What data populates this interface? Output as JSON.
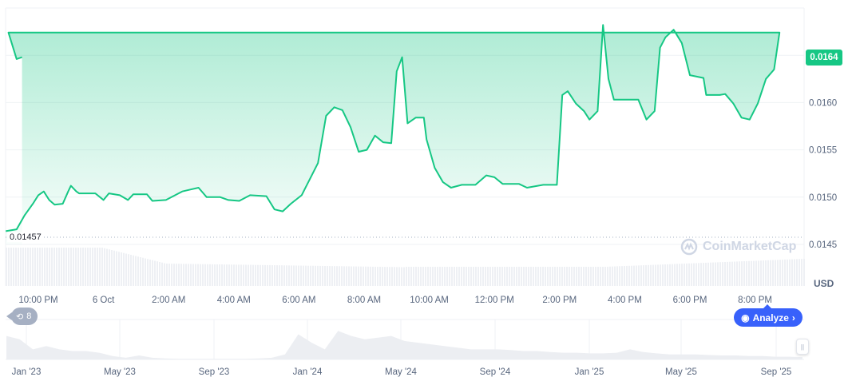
{
  "chart_data": {
    "type": "area",
    "currency": "USD",
    "current_price": "0.0164",
    "min_marker": "0.01457",
    "y_ticks": [
      "0.0160",
      "0.0155",
      "0.0150",
      "0.0145"
    ],
    "y_tick_values": [
      0.016,
      0.0155,
      0.015,
      0.0145
    ],
    "ylim": [
      0.0145,
      0.0165
    ],
    "x_ticks": [
      "10:00 PM",
      "6 Oct",
      "2:00 AM",
      "4:00 AM",
      "6:00 AM",
      "8:00 AM",
      "10:00 AM",
      "12:00 PM",
      "2:00 PM",
      "4:00 PM",
      "6:00 PM",
      "8:00 PM"
    ],
    "x_tick_times": [
      "22:00",
      "00:00",
      "02:00",
      "04:00",
      "06:00",
      "08:00",
      "10:00",
      "12:00",
      "14:00",
      "16:00",
      "18:00",
      "20:00"
    ],
    "line_color": "#16c784",
    "points": [
      [
        "21:00",
        0.01464
      ],
      [
        "21:20",
        0.01466
      ],
      [
        "21:35",
        0.01481
      ],
      [
        "21:50",
        0.01493
      ],
      [
        "22:00",
        0.01502
      ],
      [
        "22:10",
        0.01506
      ],
      [
        "22:20",
        0.01497
      ],
      [
        "22:30",
        0.01492
      ],
      [
        "22:45",
        0.01493
      ],
      [
        "22:55",
        0.01506
      ],
      [
        "23:00",
        0.01512
      ],
      [
        "23:10",
        0.01506
      ],
      [
        "23:15",
        0.01504
      ],
      [
        "23:45",
        0.01504
      ],
      [
        "00:00",
        0.01497
      ],
      [
        "00:10",
        0.01504
      ],
      [
        "00:30",
        0.01502
      ],
      [
        "00:45",
        0.01497
      ],
      [
        "00:55",
        0.01503
      ],
      [
        "01:20",
        0.01503
      ],
      [
        "01:30",
        0.01496
      ],
      [
        "01:55",
        0.01497
      ],
      [
        "02:25",
        0.01506
      ],
      [
        "02:40",
        0.01508
      ],
      [
        "02:55",
        0.0151
      ],
      [
        "03:10",
        0.015
      ],
      [
        "03:35",
        0.015
      ],
      [
        "03:50",
        0.01497
      ],
      [
        "04:10",
        0.01496
      ],
      [
        "04:30",
        0.01502
      ],
      [
        "05:00",
        0.01501
      ],
      [
        "05:15",
        0.01487
      ],
      [
        "05:30",
        0.01485
      ],
      [
        "05:45",
        0.01493
      ],
      [
        "06:05",
        0.01502
      ],
      [
        "06:20",
        0.01519
      ],
      [
        "06:35",
        0.01536
      ],
      [
        "06:50",
        0.01586
      ],
      [
        "07:05",
        0.01595
      ],
      [
        "07:20",
        0.01592
      ],
      [
        "07:35",
        0.01574
      ],
      [
        "07:50",
        0.01548
      ],
      [
        "08:05",
        0.0155
      ],
      [
        "08:20",
        0.01565
      ],
      [
        "08:35",
        0.01558
      ],
      [
        "08:50",
        0.01557
      ],
      [
        "09:00",
        0.01633
      ],
      [
        "09:10",
        0.01648
      ],
      [
        "09:20",
        0.01578
      ],
      [
        "09:35",
        0.01584
      ],
      [
        "09:50",
        0.01584
      ],
      [
        "09:55",
        0.01561
      ],
      [
        "10:10",
        0.01531
      ],
      [
        "10:25",
        0.01516
      ],
      [
        "10:40",
        0.0151
      ],
      [
        "11:00",
        0.01513
      ],
      [
        "11:25",
        0.01513
      ],
      [
        "11:45",
        0.01523
      ],
      [
        "12:00",
        0.01521
      ],
      [
        "12:15",
        0.01514
      ],
      [
        "12:45",
        0.01514
      ],
      [
        "13:00",
        0.0151
      ],
      [
        "13:30",
        0.01513
      ],
      [
        "13:55",
        0.01513
      ],
      [
        "14:05",
        0.01608
      ],
      [
        "14:15",
        0.01612
      ],
      [
        "14:30",
        0.01599
      ],
      [
        "14:45",
        0.01591
      ],
      [
        "14:55",
        0.01582
      ],
      [
        "15:10",
        0.01591
      ],
      [
        "15:20",
        0.01682
      ],
      [
        "15:30",
        0.01625
      ],
      [
        "15:40",
        0.01603
      ],
      [
        "15:55",
        0.01603
      ],
      [
        "16:25",
        0.01603
      ],
      [
        "16:40",
        0.01582
      ],
      [
        "16:55",
        0.01591
      ],
      [
        "17:05",
        0.01658
      ],
      [
        "17:15",
        0.01669
      ],
      [
        "17:30",
        0.01677
      ],
      [
        "17:45",
        0.01663
      ],
      [
        "18:00",
        0.01629
      ],
      [
        "18:25",
        0.01626
      ],
      [
        "18:30",
        0.01608
      ],
      [
        "18:55",
        0.01608
      ],
      [
        "19:05",
        0.01609
      ],
      [
        "19:20",
        0.01599
      ],
      [
        "19:35",
        0.01584
      ],
      [
        "19:50",
        0.01582
      ],
      [
        "20:05",
        0.01599
      ],
      [
        "20:20",
        0.01625
      ],
      [
        "20:35",
        0.01635
      ],
      [
        "20:45",
        0.01674
      ],
      [
        "21:05",
        0.01674
      ],
      [
        "21:20",
        0.01646
      ],
      [
        "21:30",
        0.01648
      ]
    ],
    "navigator": {
      "x_ticks": [
        "Jan '23",
        "May '23",
        "Sep '23",
        "Jan '24",
        "May '24",
        "Sep '24",
        "Jan '25",
        "May '25",
        "Sep '25"
      ],
      "relative_levels": [
        0.7,
        0.6,
        0.3,
        0.4,
        0.3,
        0.25,
        0.25,
        0.2,
        0.1,
        0.05,
        0.12,
        0.05,
        0.03,
        0.02,
        0.02,
        0.02,
        0.02,
        0.02,
        0.02,
        0.03,
        0.05,
        0.15,
        0.75,
        0.5,
        0.3,
        0.85,
        0.7,
        0.6,
        0.65,
        0.7,
        0.55,
        0.5,
        0.45,
        0.4,
        0.35,
        0.3,
        0.3,
        0.3,
        0.28,
        0.25,
        0.25,
        0.22,
        0.2,
        0.2,
        0.18,
        0.18,
        0.2,
        0.3,
        0.22,
        0.18,
        0.15,
        0.15,
        0.15,
        0.13,
        0.12,
        0.12,
        0.1,
        0.1,
        0.08,
        0.08,
        0.07
      ]
    }
  },
  "ui": {
    "currency_label": "USD",
    "history_count": "8",
    "analyze_label": "Analyze",
    "watermark": "CoinMarketCap"
  }
}
